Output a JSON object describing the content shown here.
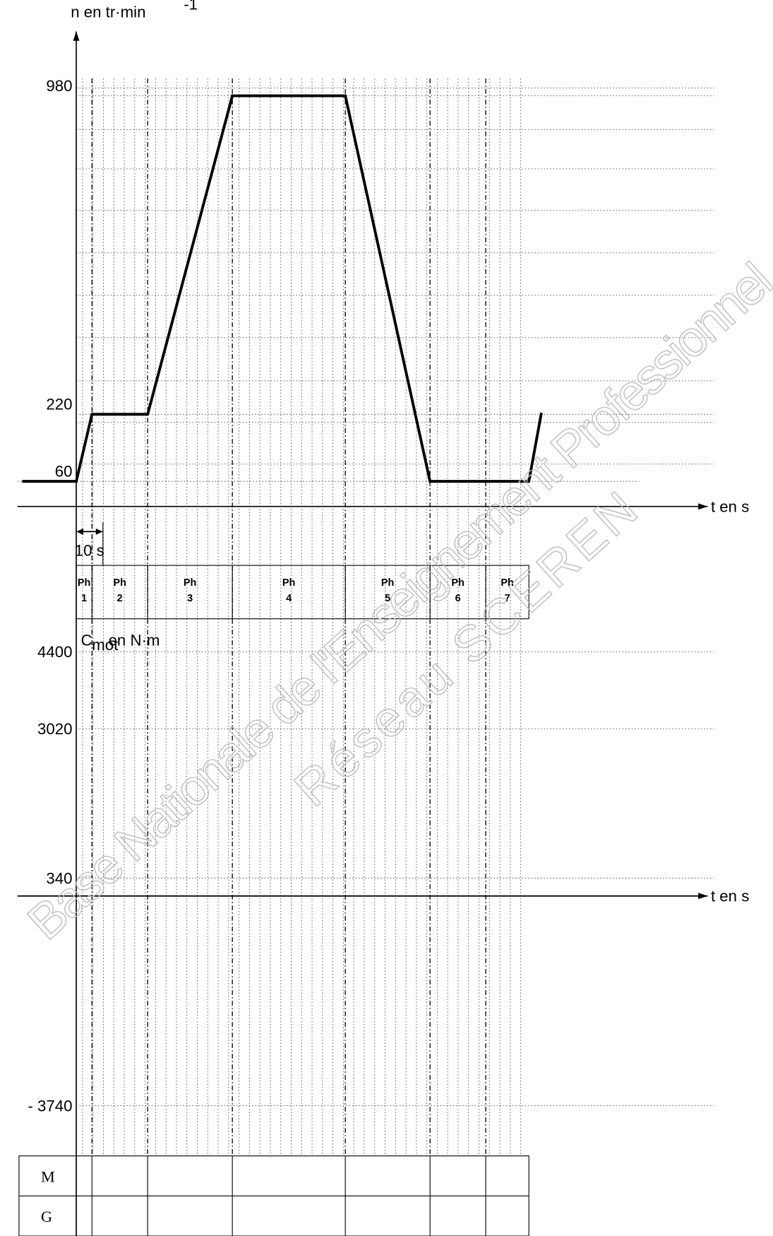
{
  "speed_axis": {
    "label": "n en tr·min",
    "label_sup": "-1",
    "ticks": [
      60,
      220,
      980
    ]
  },
  "time_label": "t en s",
  "scale_note": "10 s",
  "phases": [
    {
      "label": "Ph",
      "number": "1"
    },
    {
      "label": "Ph",
      "number": "2"
    },
    {
      "label": "Ph",
      "number": "3"
    },
    {
      "label": "Ph",
      "number": "4"
    },
    {
      "label": "Ph",
      "number": "5"
    },
    {
      "label": "Ph",
      "number": "6"
    },
    {
      "label": "Ph",
      "number": "7"
    }
  ],
  "torque_axis": {
    "label": "C",
    "label_sub": "mot",
    "label_rest": " en N·m",
    "ticks": [
      4400,
      3020,
      340,
      {
        "value": -3740,
        "label": "- 3740"
      }
    ]
  },
  "mode_rows": [
    "M",
    "G"
  ],
  "watermark": [
    "Base Nationale de l'Enseignement Professionnel",
    "Réseau SCEREN"
  ]
}
